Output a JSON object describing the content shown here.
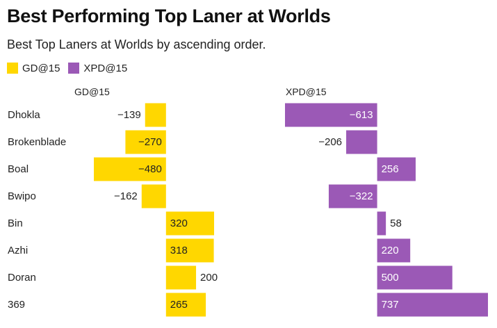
{
  "header": {
    "title": "Best Performing Top Laner at Worlds",
    "subtitle": "Best Top Laners at Worlds by ascending order."
  },
  "colors": {
    "gd": "#FFD700",
    "xpd": "#9B59B6"
  },
  "chart_data": {
    "type": "bar",
    "orientation": "horizontal",
    "title": "Best Performing Top Laner at Worlds",
    "subtitle": "Best Top Laners at Worlds by ascending order.",
    "legend_position": "top-left",
    "grid": false,
    "categories": [
      "Dhokla",
      "Brokenblade",
      "Boal",
      "Bwipo",
      "Bin",
      "Azhi",
      "Doran",
      "369"
    ],
    "series": [
      {
        "name": "GD@15",
        "color": "#FFD700",
        "values": [
          -139,
          -270,
          -480,
          -162,
          320,
          318,
          200,
          265
        ]
      },
      {
        "name": "XPD@15",
        "color": "#9B59B6",
        "values": [
          -613,
          -206,
          256,
          -322,
          58,
          220,
          500,
          737
        ]
      }
    ],
    "panels": [
      {
        "title": "GD@15",
        "xlim": [
          -480,
          320
        ]
      },
      {
        "title": "XPD@15",
        "xlim": [
          -613,
          737
        ]
      }
    ]
  }
}
